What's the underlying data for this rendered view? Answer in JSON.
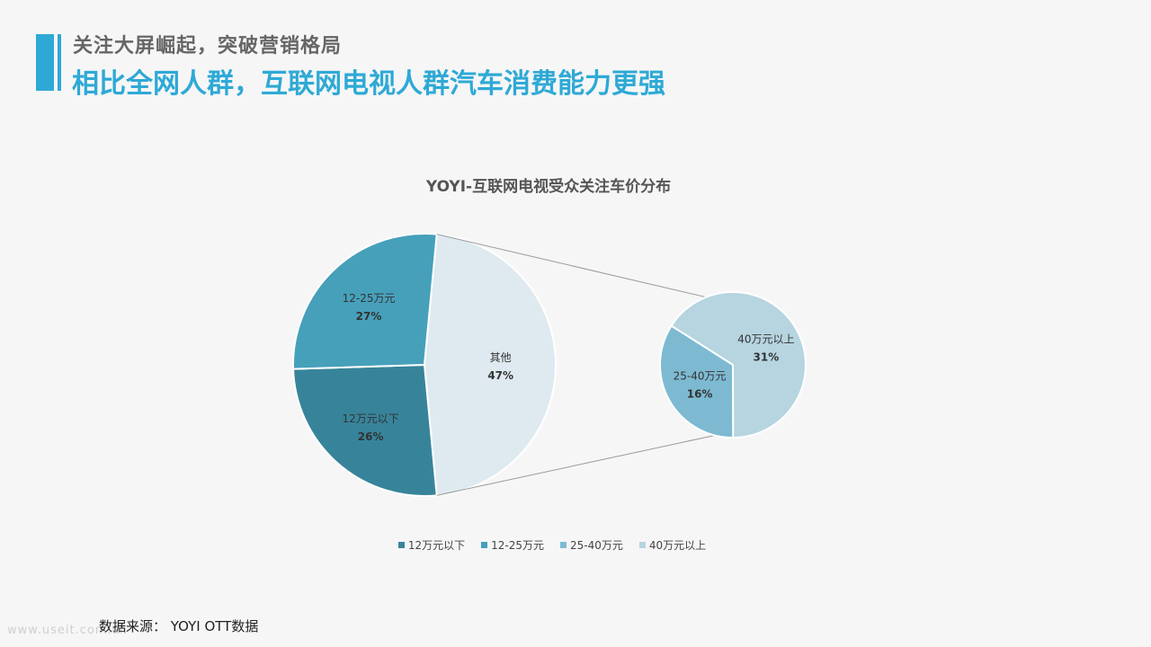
{
  "header": {
    "kicker": "关注大屏崛起，突破营销格局",
    "headline": "相比全网人群，互联网电视人群汽车消费能力更强"
  },
  "footer": {
    "source": "数据来源： YOYI OTT数据",
    "watermark": "www.useit.com.cn"
  },
  "chart_data": {
    "type": "pie",
    "subtype": "pie-of-pie",
    "title": "YOYI-互联网电视受众关注车价分布",
    "main_pie": {
      "slices": [
        {
          "label": "12万元以下",
          "value": 26,
          "display": "26%",
          "color": "#37849a"
        },
        {
          "label": "12-25万元",
          "value": 27,
          "display": "27%",
          "color": "#46a0ba"
        },
        {
          "label": "其他",
          "value": 47,
          "display": "47%",
          "color": "#deeaf0"
        }
      ]
    },
    "secondary_pie": {
      "source_slice": "其他",
      "slices": [
        {
          "label": "25-40万元",
          "value": 16,
          "display": "16%",
          "color": "#7dbad2"
        },
        {
          "label": "40万元以上",
          "value": 31,
          "display": "31%",
          "color": "#b6d5e0"
        }
      ]
    },
    "legend": {
      "position": "bottom",
      "items": [
        {
          "label": "12万元以下",
          "color": "#37849a"
        },
        {
          "label": "12-25万元",
          "color": "#46a0ba"
        },
        {
          "label": "25-40万元",
          "color": "#7dbad2"
        },
        {
          "label": "40万元以上",
          "color": "#b6d5e0"
        }
      ]
    }
  }
}
